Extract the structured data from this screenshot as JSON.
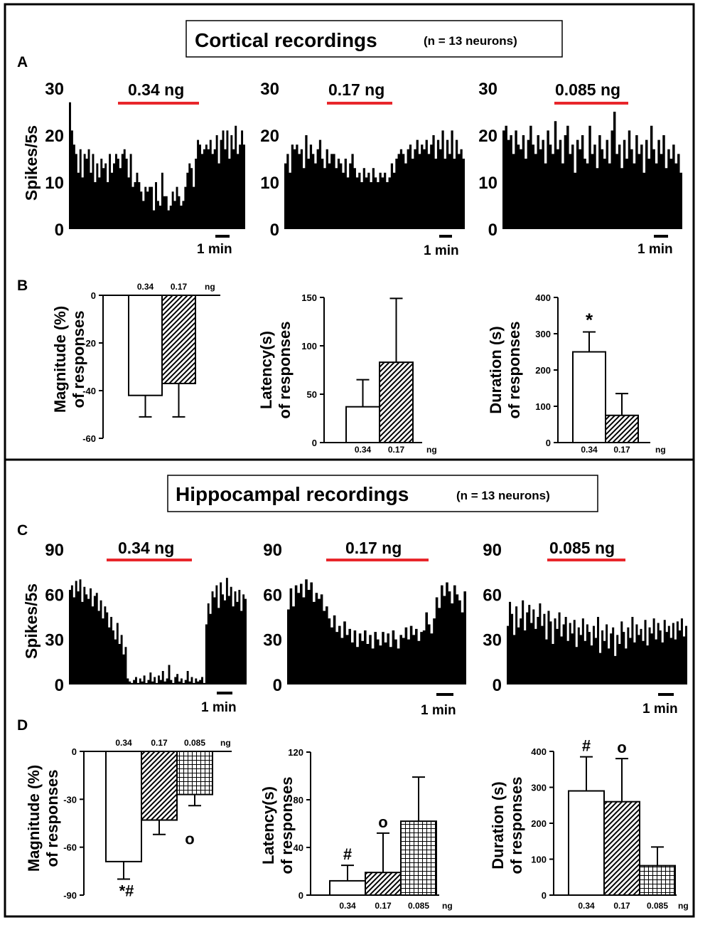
{
  "sections": [
    {
      "title": "Cortical recordings",
      "n_label": "(n = 13 neurons)"
    },
    {
      "title": "Hippocampal recordings",
      "n_label": "(n = 13 neurons)"
    }
  ],
  "panel_letters": [
    "A",
    "B",
    "C",
    "D"
  ],
  "colors": {
    "drug_bar": "#e8262b",
    "ink": "#000000",
    "paper": "#ffffff"
  },
  "chart_data": [
    {
      "id": "A1",
      "type": "histogram",
      "ylabel": "Spikes/5s",
      "yticks": [
        "0",
        "10",
        "20",
        "30"
      ],
      "ylim": [
        0,
        30
      ],
      "dose_label": "0.34 ng",
      "scale_label": "1 min",
      "drug_window": [
        0.27,
        0.73
      ],
      "values": [
        27,
        21,
        18,
        16,
        12,
        17,
        11,
        16,
        15,
        17,
        12,
        16,
        10,
        14,
        11,
        15,
        13,
        14,
        10,
        16,
        12,
        14,
        16,
        15,
        13,
        16,
        17,
        15,
        11,
        16,
        9,
        10,
        12,
        10,
        8,
        6,
        9,
        8,
        9,
        9,
        4,
        10,
        6,
        5,
        12,
        7,
        7,
        4,
        5,
        8,
        6,
        9,
        7,
        5,
        6,
        9,
        12,
        14,
        13,
        9,
        15,
        19,
        18,
        16,
        17,
        18,
        17,
        19,
        16,
        17,
        20,
        14,
        19,
        21,
        17,
        21,
        15,
        20,
        17,
        22,
        16,
        18,
        21,
        18
      ]
    },
    {
      "id": "A2",
      "type": "histogram",
      "ylabel": "",
      "yticks": [
        "0",
        "10",
        "20",
        "30"
      ],
      "ylim": [
        0,
        30
      ],
      "dose_label": "0.17 ng",
      "scale_label": "1 min",
      "drug_window": [
        0.27,
        0.6
      ],
      "values": [
        14,
        16,
        12,
        18,
        17,
        18,
        16,
        17,
        13,
        20,
        15,
        18,
        16,
        14,
        17,
        19,
        15,
        13,
        17,
        14,
        16,
        16,
        13,
        15,
        14,
        12,
        15,
        11,
        14,
        16,
        13,
        11,
        12,
        10,
        13,
        11,
        12,
        10,
        13,
        11,
        10,
        12,
        11,
        12,
        10,
        11,
        14,
        12,
        15,
        16,
        17,
        16,
        14,
        17,
        18,
        15,
        17,
        19,
        16,
        18,
        17,
        19,
        16,
        18,
        20,
        15,
        19,
        17,
        21,
        15,
        19,
        16,
        21,
        15,
        19,
        16,
        17,
        15
      ]
    },
    {
      "id": "A3",
      "type": "histogram",
      "ylabel": "",
      "yticks": [
        "0",
        "10",
        "20",
        "30"
      ],
      "ylim": [
        0,
        30
      ],
      "dose_label": "0.085 ng",
      "scale_label": "1 min",
      "drug_window": [
        0.28,
        0.66
      ],
      "values": [
        21,
        22,
        19,
        20,
        16,
        21,
        18,
        17,
        20,
        15,
        19,
        22,
        18,
        16,
        20,
        17,
        19,
        14,
        21,
        18,
        16,
        23,
        17,
        19,
        14,
        20,
        22,
        16,
        18,
        12,
        19,
        17,
        20,
        15,
        14,
        22,
        16,
        18,
        13,
        20,
        17,
        15,
        19,
        14,
        21,
        25,
        16,
        18,
        13,
        19,
        15,
        21,
        17,
        14,
        20,
        16,
        18,
        12,
        19,
        15,
        22,
        17,
        14,
        19,
        16,
        20,
        13,
        17,
        15,
        18,
        14,
        16,
        12
      ]
    },
    {
      "id": "B1",
      "type": "bar",
      "ylabel_lines": [
        "Magnitude (%)",
        "of responses"
      ],
      "yticks": [
        "0",
        "-20",
        "-40",
        "-60"
      ],
      "ylim": [
        -60,
        0
      ],
      "categories": [
        "0.34",
        "0.17"
      ],
      "unit_label": "ng",
      "values": [
        -42,
        -37
      ],
      "errors": [
        9,
        14
      ],
      "markers": [
        "",
        ""
      ]
    },
    {
      "id": "B2",
      "type": "bar",
      "ylabel_lines": [
        "Latency(s)",
        "of responses"
      ],
      "yticks": [
        "0",
        "50",
        "100",
        "150"
      ],
      "ylim": [
        0,
        150
      ],
      "categories": [
        "0.34",
        "0.17"
      ],
      "unit_label": "ng",
      "values": [
        37,
        83
      ],
      "errors": [
        28,
        66
      ],
      "markers": [
        "",
        ""
      ]
    },
    {
      "id": "B3",
      "type": "bar",
      "ylabel_lines": [
        "Duration (s)",
        "of responses"
      ],
      "yticks": [
        "0",
        "100",
        "200",
        "300",
        "400"
      ],
      "ylim": [
        0,
        400
      ],
      "categories": [
        "0.34",
        "0.17"
      ],
      "unit_label": "ng",
      "values": [
        250,
        75
      ],
      "errors": [
        55,
        60
      ],
      "markers": [
        "*",
        ""
      ]
    },
    {
      "id": "C1",
      "type": "histogram",
      "ylabel": "Spikes/5s",
      "yticks": [
        "0",
        "30",
        "60",
        "90"
      ],
      "ylim": [
        0,
        90
      ],
      "dose_label": "0.34 ng",
      "scale_label": "1 min",
      "drug_window": [
        0.22,
        0.72
      ],
      "values": [
        63,
        66,
        58,
        69,
        62,
        70,
        55,
        65,
        60,
        57,
        64,
        52,
        59,
        61,
        49,
        56,
        44,
        52,
        48,
        38,
        45,
        36,
        30,
        41,
        27,
        33,
        20,
        25,
        4,
        2,
        1,
        3,
        5,
        1,
        4,
        2,
        6,
        1,
        3,
        8,
        2,
        5,
        1,
        6,
        3,
        9,
        2,
        4,
        13,
        3,
        1,
        5,
        7,
        2,
        4,
        1,
        3,
        9,
        2,
        5,
        1,
        4,
        2,
        3,
        5,
        1,
        40,
        54,
        47,
        62,
        58,
        66,
        51,
        68,
        60,
        56,
        71,
        59,
        65,
        52,
        62,
        55,
        63,
        49,
        60,
        57
      ]
    },
    {
      "id": "C2",
      "type": "histogram",
      "ylabel": "",
      "yticks": [
        "0",
        "30",
        "60",
        "90"
      ],
      "ylim": [
        0,
        90
      ],
      "dose_label": "0.17 ng",
      "scale_label": "1 min",
      "drug_window": [
        0.3,
        0.81
      ],
      "values": [
        50,
        64,
        52,
        66,
        61,
        67,
        58,
        70,
        63,
        68,
        55,
        61,
        57,
        60,
        49,
        52,
        44,
        38,
        46,
        35,
        39,
        31,
        42,
        33,
        37,
        28,
        36,
        25,
        34,
        29,
        36,
        27,
        33,
        24,
        35,
        30,
        26,
        35,
        28,
        34,
        25,
        36,
        30,
        24,
        33,
        31,
        38,
        30,
        39,
        33,
        37,
        29,
        35,
        36,
        48,
        40,
        34,
        44,
        58,
        51,
        66,
        59,
        68,
        62,
        54,
        66,
        60,
        56,
        48,
        62
      ]
    },
    {
      "id": "C3",
      "type": "histogram",
      "ylabel": "",
      "yticks": [
        "0",
        "30",
        "60",
        "90"
      ],
      "ylim": [
        0,
        90
      ],
      "dose_label": "0.085 ng",
      "scale_label": "1 min",
      "drug_window": [
        0.29,
        0.68
      ],
      "values": [
        39,
        55,
        47,
        33,
        52,
        38,
        44,
        56,
        36,
        48,
        53,
        41,
        50,
        37,
        45,
        54,
        39,
        47,
        30,
        49,
        42,
        27,
        44,
        37,
        48,
        32,
        40,
        45,
        29,
        41,
        34,
        43,
        25,
        38,
        33,
        44,
        29,
        40,
        35,
        26,
        39,
        31,
        45,
        21,
        36,
        29,
        40,
        24,
        34,
        38,
        19,
        33,
        27,
        42,
        35,
        24,
        38,
        31,
        45,
        28,
        40,
        33,
        37,
        29,
        43,
        26,
        38,
        34,
        44,
        30,
        41,
        36,
        28,
        43,
        35,
        39,
        31,
        41,
        30,
        42,
        36,
        44,
        32,
        39
      ]
    },
    {
      "id": "D1",
      "type": "bar",
      "ylabel_lines": [
        "Magnitude (%)",
        "of responses"
      ],
      "yticks": [
        "0",
        "-30",
        "-60",
        "-90"
      ],
      "ylim": [
        -90,
        0
      ],
      "categories": [
        "0.34",
        "0.17",
        "0.085"
      ],
      "unit_label": "ng",
      "values": [
        -69,
        -43,
        -27
      ],
      "errors": [
        11,
        9,
        7
      ],
      "markers": [
        "*#",
        "o",
        ""
      ]
    },
    {
      "id": "D2",
      "type": "bar",
      "ylabel_lines": [
        "Latency(s)",
        "of responses"
      ],
      "yticks": [
        "0",
        "40",
        "80",
        "120"
      ],
      "ylim": [
        0,
        120
      ],
      "categories": [
        "0.34",
        "0.17",
        "0.085"
      ],
      "unit_label": "ng",
      "values": [
        12,
        19,
        62
      ],
      "errors": [
        13,
        33,
        37
      ],
      "markers": [
        "#",
        "o",
        ""
      ]
    },
    {
      "id": "D3",
      "type": "bar",
      "ylabel_lines": [
        "Duration (s)",
        "of responses"
      ],
      "yticks": [
        "0",
        "100",
        "200",
        "300",
        "400"
      ],
      "ylim": [
        0,
        400
      ],
      "categories": [
        "0.34",
        "0.17",
        "0.085"
      ],
      "unit_label": "ng",
      "values": [
        290,
        260,
        82
      ],
      "errors": [
        95,
        120,
        52
      ],
      "markers": [
        "#",
        "o",
        ""
      ]
    }
  ]
}
